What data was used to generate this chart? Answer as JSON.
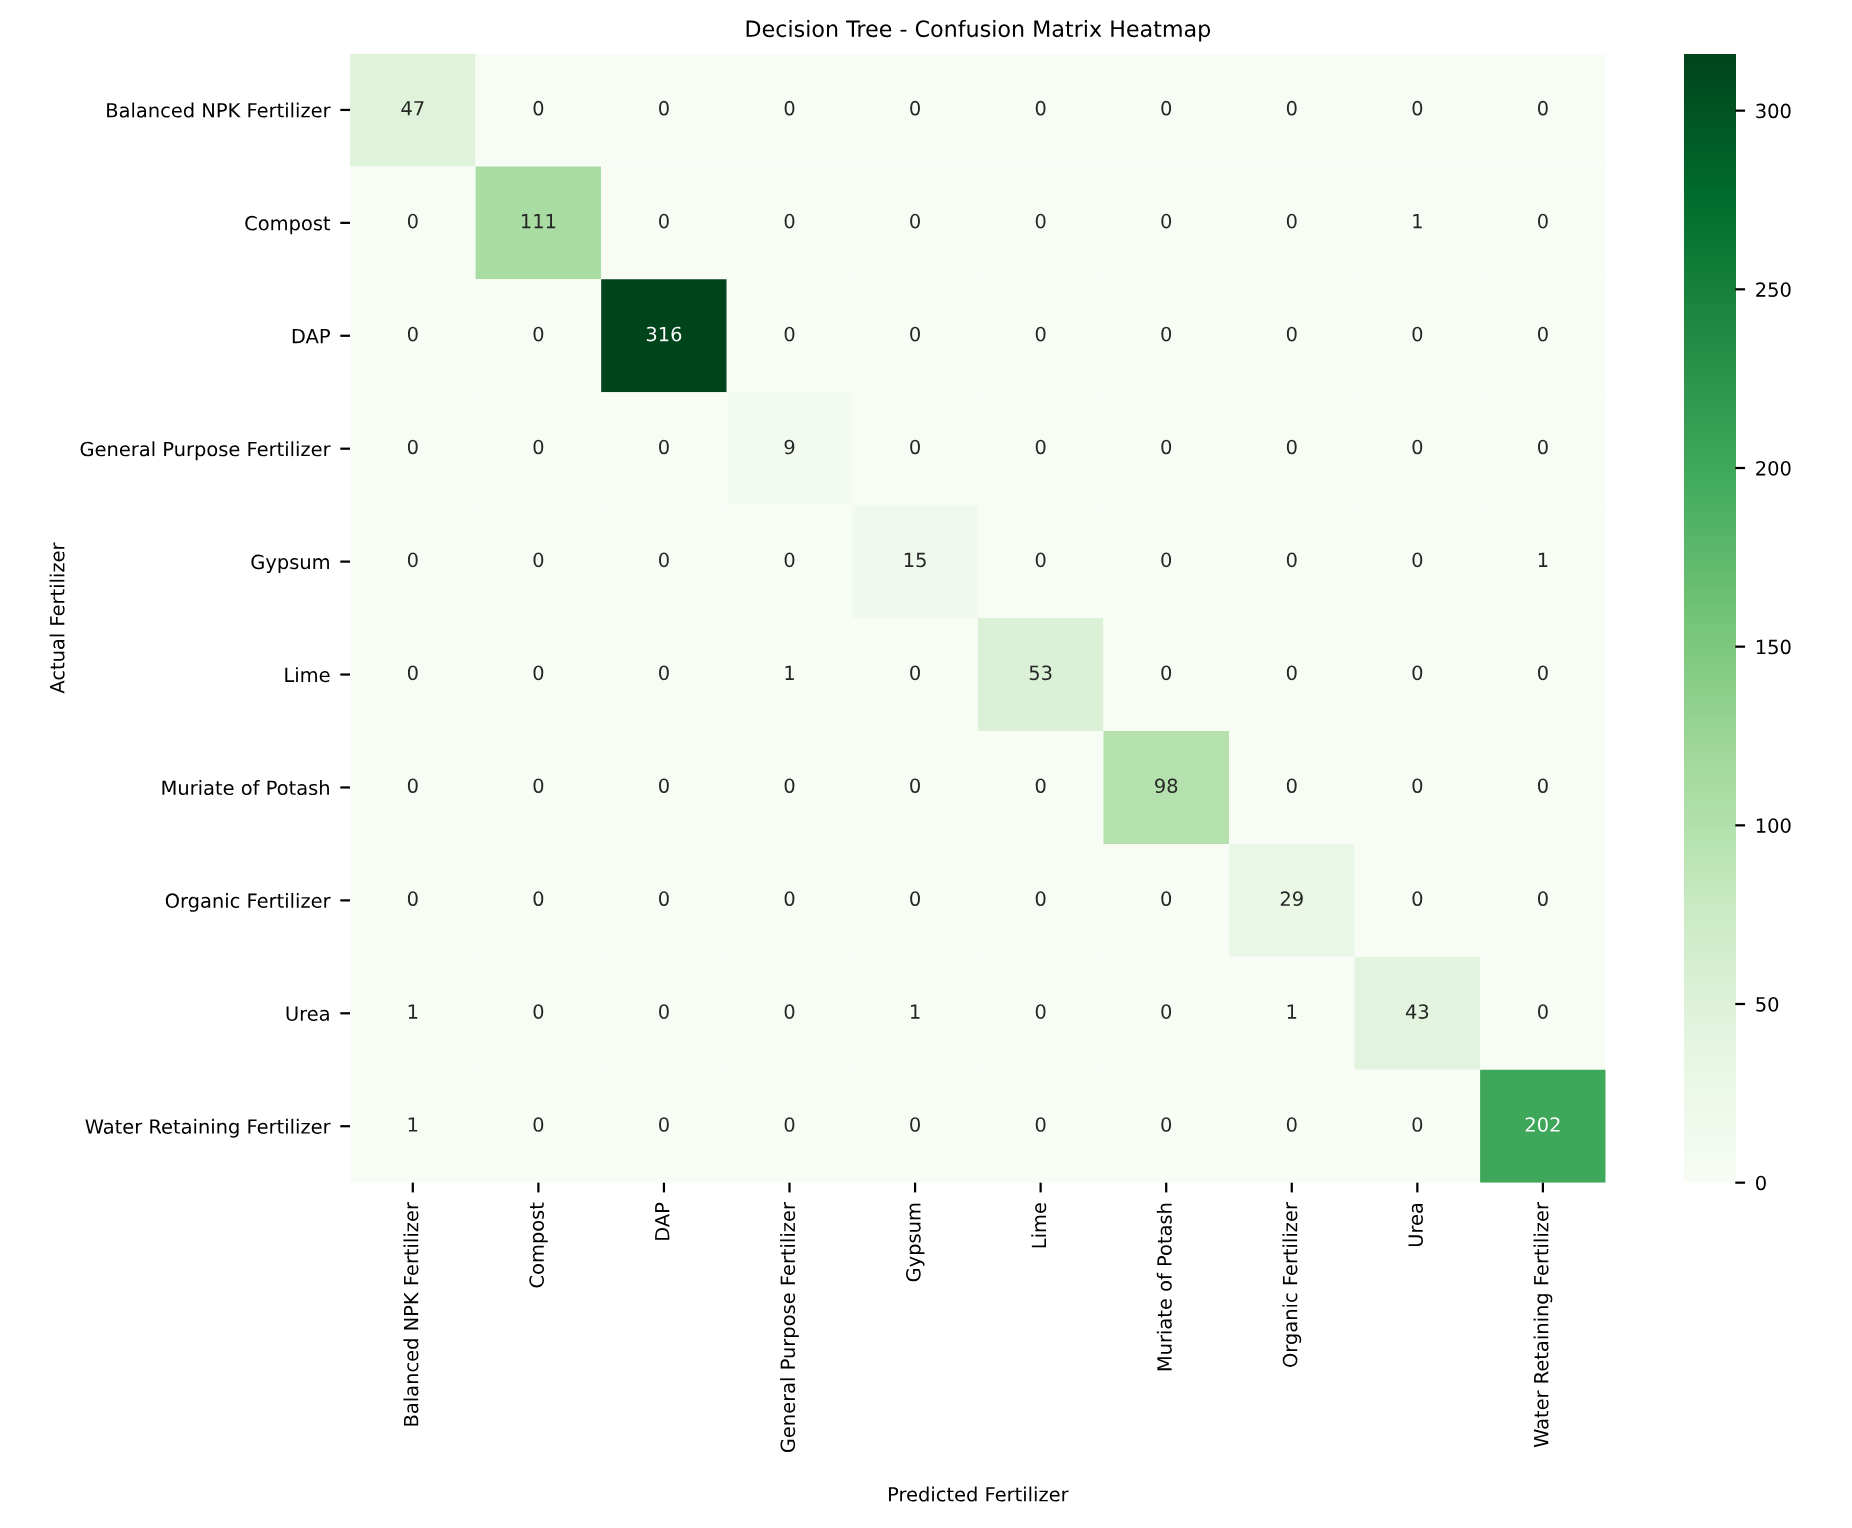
{
  "chart_data": {
    "type": "heatmap",
    "title": "Decision Tree - Confusion Matrix Heatmap",
    "xlabel": "Predicted Fertilizer",
    "ylabel": "Actual Fertilizer",
    "categories": [
      "Balanced NPK Fertilizer",
      "Compost",
      "DAP",
      "General Purpose Fertilizer",
      "Gypsum",
      "Lime",
      "Muriate of Potash",
      "Organic Fertilizer",
      "Urea",
      "Water Retaining Fertilizer"
    ],
    "y_categories": [
      "Balanced NPK Fertilizer",
      "Compost",
      "DAP",
      "General Purpose Fertilizer",
      "Gypsum",
      "Lime",
      "Muriate of Potash",
      "Organic Fertilizer",
      "Urea",
      "Water Retaining Fertilizer"
    ],
    "cells": [
      [
        47,
        0,
        0,
        0,
        0,
        0,
        0,
        0,
        0,
        0
      ],
      [
        0,
        111,
        0,
        0,
        0,
        0,
        0,
        0,
        1,
        0
      ],
      [
        0,
        0,
        316,
        0,
        0,
        0,
        0,
        0,
        0,
        0
      ],
      [
        0,
        0,
        0,
        9,
        0,
        0,
        0,
        0,
        0,
        0
      ],
      [
        0,
        0,
        0,
        0,
        15,
        0,
        0,
        0,
        0,
        1
      ],
      [
        0,
        0,
        0,
        1,
        0,
        53,
        0,
        0,
        0,
        0
      ],
      [
        0,
        0,
        0,
        0,
        0,
        0,
        98,
        0,
        0,
        0
      ],
      [
        0,
        0,
        0,
        0,
        0,
        0,
        0,
        29,
        0,
        0
      ],
      [
        1,
        0,
        0,
        0,
        1,
        0,
        0,
        1,
        43,
        0
      ],
      [
        1,
        0,
        0,
        0,
        0,
        0,
        0,
        0,
        0,
        202
      ]
    ],
    "clim": [
      0,
      316
    ],
    "cticks": [
      0,
      50,
      100,
      150,
      200,
      250,
      300
    ],
    "data_labels": true
  }
}
